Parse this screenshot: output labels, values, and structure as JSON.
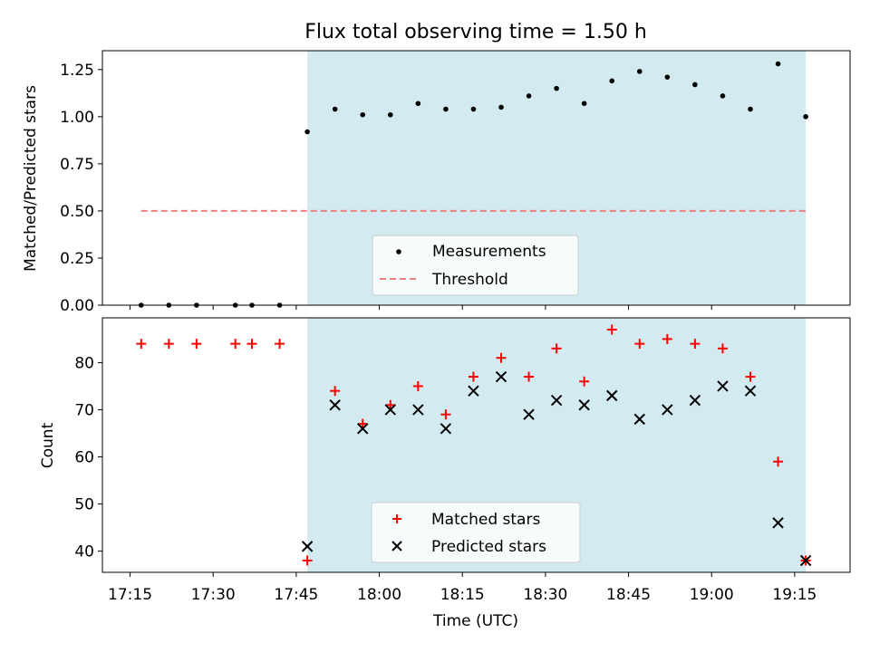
{
  "chart_data": [
    {
      "type": "scatter",
      "title": "Flux total observing time = 1.50 h",
      "xlabel": "",
      "ylabel": "Matched/Predicted stars",
      "ylim": [
        0,
        1.35
      ],
      "yticks": [
        "0.00",
        "0.25",
        "0.50",
        "0.75",
        "1.00",
        "1.25"
      ],
      "ytick_values": [
        0,
        0.25,
        0.5,
        0.75,
        1.0,
        1.25
      ],
      "shaded_region": {
        "x_from": "17:47",
        "x_to": "19:17",
        "color": "#d3eaf0"
      },
      "threshold": {
        "name": "Threshold",
        "y": 0.5,
        "x_from": "17:17",
        "x_to": "19:17",
        "color": "#f08080"
      },
      "series": [
        {
          "name": "Measurements",
          "x": [
            "17:17",
            "17:22",
            "17:27",
            "17:34",
            "17:37",
            "17:42",
            "17:47",
            "17:52",
            "17:57",
            "18:02",
            "18:07",
            "18:12",
            "18:17",
            "18:22",
            "18:27",
            "18:32",
            "18:37",
            "18:42",
            "18:47",
            "18:52",
            "18:57",
            "19:02",
            "19:07",
            "19:12",
            "19:17"
          ],
          "values": [
            0,
            0,
            0,
            0,
            0,
            0,
            0.92,
            1.04,
            1.01,
            1.01,
            1.07,
            1.04,
            1.04,
            1.05,
            1.11,
            1.15,
            1.07,
            1.19,
            1.24,
            1.21,
            1.17,
            1.11,
            1.04,
            1.28,
            1.0
          ],
          "color": "#000000"
        }
      ],
      "legend": {
        "position": "bottom-center",
        "entries": [
          "Measurements",
          "Threshold"
        ]
      }
    },
    {
      "type": "scatter",
      "title": "",
      "xlabel": "Time (UTC)",
      "ylabel": "Count",
      "ylim": [
        35.5,
        89.5
      ],
      "yticks": [
        "40",
        "50",
        "60",
        "70",
        "80"
      ],
      "ytick_values": [
        40,
        50,
        60,
        70,
        80
      ],
      "xticks": [
        "17:15",
        "17:30",
        "17:45",
        "18:00",
        "18:15",
        "18:30",
        "18:45",
        "19:00",
        "19:15"
      ],
      "xlim": [
        "17:10",
        "19:25"
      ],
      "shaded_region": {
        "x_from": "17:47",
        "x_to": "19:17",
        "color": "#d3eaf0"
      },
      "series": [
        {
          "name": "Matched stars",
          "marker": "plus",
          "color": "#ff0000",
          "x": [
            "17:17",
            "17:22",
            "17:27",
            "17:34",
            "17:37",
            "17:42",
            "17:47",
            "17:52",
            "17:57",
            "18:02",
            "18:07",
            "18:12",
            "18:17",
            "18:22",
            "18:27",
            "18:32",
            "18:37",
            "18:42",
            "18:47",
            "18:52",
            "18:57",
            "19:02",
            "19:07",
            "19:12",
            "19:17"
          ],
          "values": [
            84,
            84,
            84,
            84,
            84,
            84,
            38,
            74,
            67,
            71,
            75,
            69,
            77,
            81,
            77,
            83,
            76,
            87,
            84,
            85,
            84,
            83,
            77,
            59,
            38
          ]
        },
        {
          "name": "Predicted stars",
          "marker": "x",
          "color": "#000000",
          "x": [
            "17:47",
            "17:52",
            "17:57",
            "18:02",
            "18:07",
            "18:12",
            "18:17",
            "18:22",
            "18:27",
            "18:32",
            "18:37",
            "18:42",
            "18:47",
            "18:52",
            "18:57",
            "19:02",
            "19:07",
            "19:12",
            "19:17"
          ],
          "values": [
            41,
            71,
            66,
            70,
            70,
            66,
            74,
            77,
            69,
            72,
            71,
            73,
            68,
            70,
            72,
            75,
            74,
            46,
            38
          ]
        }
      ],
      "legend": {
        "position": "bottom-center",
        "entries": [
          "Matched stars",
          "Predicted stars"
        ]
      }
    }
  ]
}
